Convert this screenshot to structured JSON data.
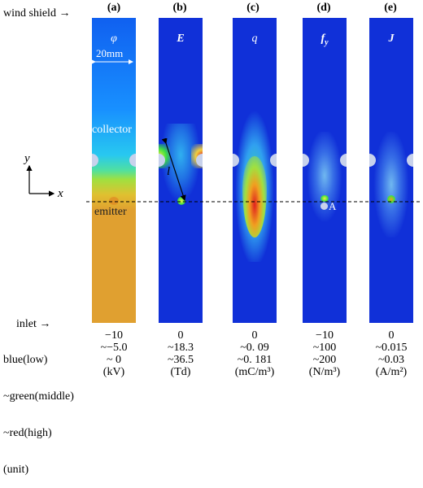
{
  "labels": {
    "wind_shield": "wind shield",
    "inlet": "inlet",
    "collector": "collector",
    "emitter": "emitter",
    "dim": "20mm",
    "axis_y": "y",
    "axis_x": "x",
    "l": "l",
    "point_a": "A"
  },
  "panels": [
    {
      "tag": "(a)",
      "symbol": "φ",
      "sub": ""
    },
    {
      "tag": "(b)",
      "symbol": "E",
      "sub": ""
    },
    {
      "tag": "(c)",
      "symbol": "q",
      "sub": ""
    },
    {
      "tag": "(d)",
      "symbol": "f",
      "sub": "y"
    },
    {
      "tag": "(e)",
      "symbol": "J",
      "sub": ""
    }
  ],
  "legend": {
    "row1": "blue(low)",
    "row2": "~green(middle)",
    "row3": "~red(high)",
    "row4": "(unit)"
  },
  "columns": [
    {
      "v1": "−10",
      "v2": "~−5.0",
      "v3": "~ 0",
      "unit": "(kV)"
    },
    {
      "v1": "0",
      "v2": "~18.3",
      "v3": "~36.5",
      "unit": "(Td)"
    },
    {
      "v1": "0",
      "v2": "~0. 09",
      "v3": "~0. 181",
      "unit": "(mC/m³)"
    },
    {
      "v1": "−10",
      "v2": "~100",
      "v3": "~200",
      "unit": "(N/m³)"
    },
    {
      "v1": "0",
      "v2": "~0.015",
      "v3": "~0.03",
      "unit": "(A/m²)"
    }
  ],
  "colors": {
    "blue": "#1030e0",
    "green": "#40e040",
    "red": "#e02020",
    "orange": "#e0a030"
  }
}
